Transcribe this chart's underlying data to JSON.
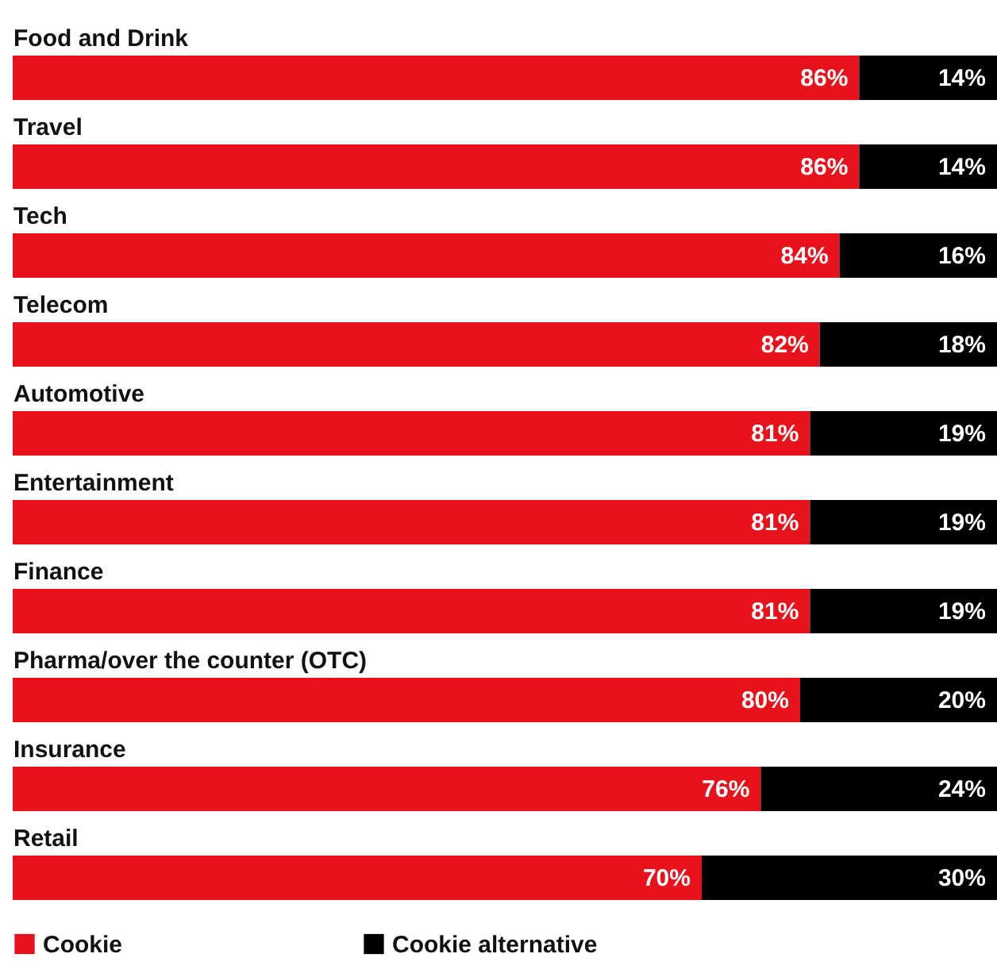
{
  "chart_data": {
    "type": "bar",
    "orientation": "horizontal",
    "stacked": true,
    "legend": "bottom",
    "categories": [
      "Food and Drink",
      "Travel",
      "Tech",
      "Telecom",
      "Automotive",
      "Entertainment",
      "Finance",
      "Pharma/over the counter (OTC)",
      "Insurance",
      "Retail"
    ],
    "series": [
      {
        "name": "Cookie",
        "color": "#e8121c",
        "values": [
          86,
          86,
          84,
          82,
          81,
          81,
          81,
          80,
          76,
          70
        ],
        "value_labels": [
          "86%",
          "86%",
          "84%",
          "82%",
          "81%",
          "81%",
          "81%",
          "80%",
          "76%",
          "70%"
        ]
      },
      {
        "name": "Cookie alternative",
        "color": "#000000",
        "values": [
          14,
          14,
          16,
          18,
          19,
          19,
          19,
          20,
          24,
          30
        ],
        "value_labels": [
          "14%",
          "14%",
          "16%",
          "18%",
          "19%",
          "19%",
          "19%",
          "20%",
          "24%",
          "30%"
        ]
      }
    ]
  }
}
